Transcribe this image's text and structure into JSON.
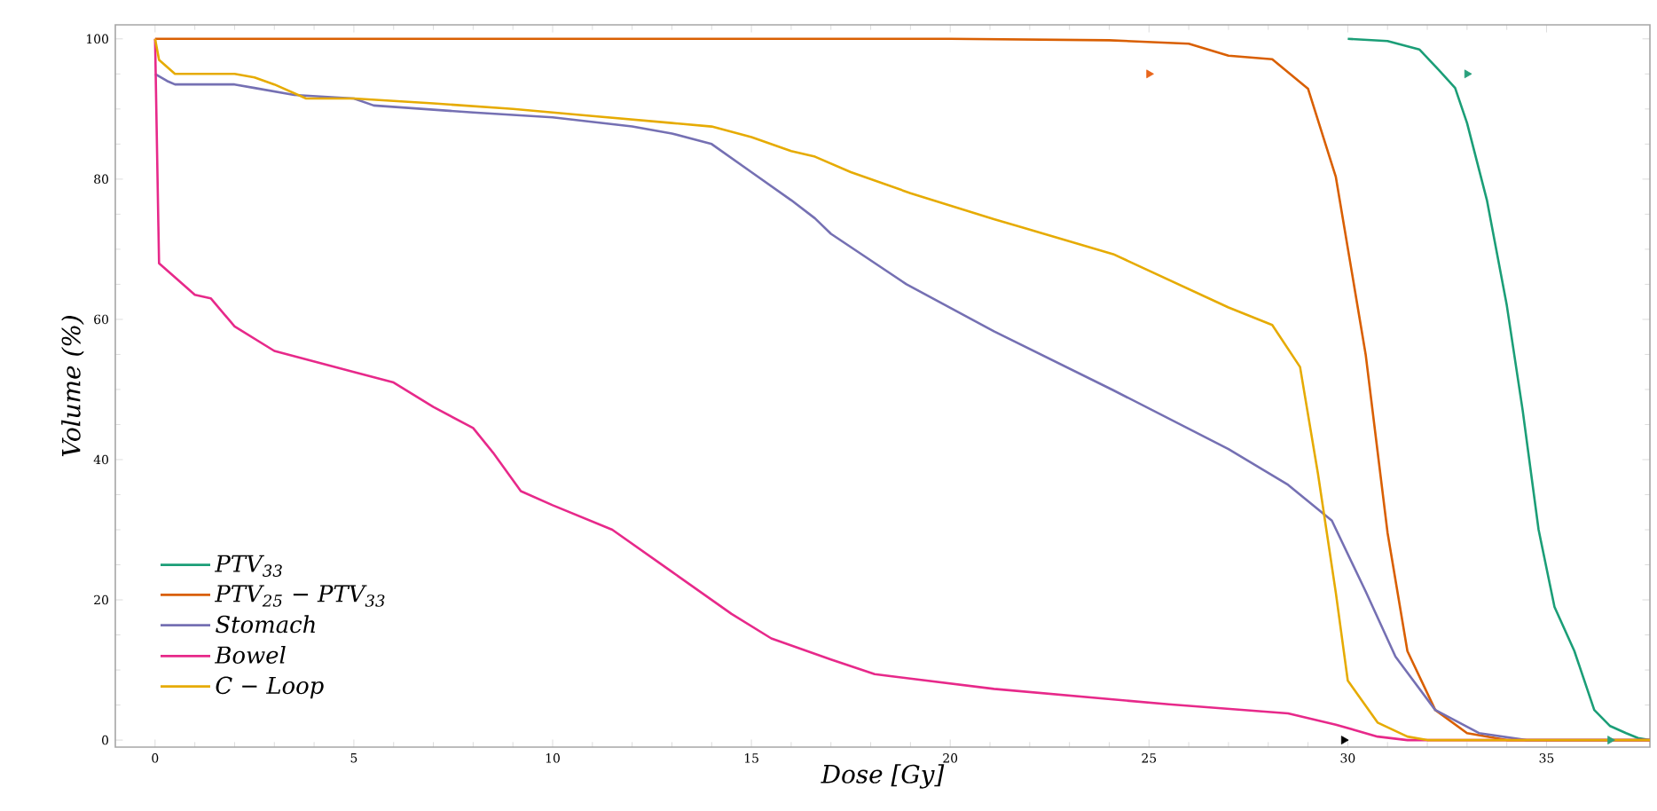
{
  "chart_data": {
    "type": "line",
    "xlabel": "Dose [Gy]",
    "ylabel": "Volume (%)",
    "xlim": [
      -1,
      37.6
    ],
    "ylim": [
      -1,
      102
    ],
    "xticks": [
      0,
      5,
      10,
      15,
      20,
      25,
      30,
      35
    ],
    "yticks": [
      0,
      20,
      40,
      60,
      80,
      100
    ],
    "grid": false,
    "legend": "bottom left",
    "marker": "none",
    "line_style": "solid",
    "series": [
      {
        "name": "PTV$_{33}$",
        "color": "#1b9e77",
        "x": [
          30,
          31,
          31.8,
          32.3,
          32.7,
          33,
          33.5,
          34,
          34.4,
          34.8,
          35.2,
          35.7,
          36.2,
          36.6,
          37,
          37.3,
          37.6
        ],
        "values": [
          100,
          99.7,
          98.5,
          95.5,
          93,
          88,
          77,
          62,
          47,
          30,
          19,
          12.7,
          4.3,
          2,
          1,
          0.3,
          0
        ]
      },
      {
        "name": "PTV$_{25}$ − PTV$_{33}$",
        "color": "#d95f02",
        "x": [
          0,
          10,
          20,
          24,
          26,
          27,
          28.1,
          29,
          29.7,
          30.45,
          31,
          31.5,
          32.2,
          33,
          34,
          37.6
        ],
        "values": [
          100,
          100,
          100,
          99.8,
          99.3,
          97.6,
          97.1,
          92.9,
          80.3,
          55,
          29.6,
          12.7,
          4.3,
          1,
          0,
          0
        ]
      },
      {
        "name": "Stomach",
        "color": "#7570b3",
        "x": [
          0,
          0.3,
          0.5,
          2,
          2.5,
          3.5,
          5,
          5.5,
          8,
          10,
          12,
          13,
          14,
          15,
          16,
          16.6,
          17,
          18.9,
          21.1,
          24.1,
          27,
          28.5,
          29.6,
          30.45,
          31.2,
          32.2,
          33.3,
          34.5,
          37.6
        ],
        "values": [
          95,
          94,
          93.5,
          93.5,
          93,
          92,
          91.5,
          90.5,
          89.5,
          88.8,
          87.5,
          86.5,
          85,
          81,
          77,
          74.4,
          72.2,
          65,
          58.3,
          49.9,
          41.5,
          36.4,
          31.3,
          21.2,
          11.9,
          4.3,
          1,
          0,
          0
        ]
      },
      {
        "name": "Bowel",
        "color": "#e7298a",
        "x": [
          0,
          0.1,
          0.5,
          1,
          1.4,
          2,
          3,
          4,
          5,
          6,
          7,
          8,
          8.5,
          9.2,
          10,
          11.5,
          13,
          14.5,
          15.5,
          17,
          18.1,
          21.1,
          25.5,
          28.5,
          29.7,
          30.75,
          31.5,
          37.6
        ],
        "values": [
          100,
          68,
          66,
          63.5,
          63,
          59,
          55.5,
          54,
          52.5,
          51,
          47.5,
          44.5,
          41,
          35.5,
          33.5,
          30,
          24,
          18,
          14.5,
          11.5,
          9.4,
          7.3,
          5.1,
          3.8,
          2.2,
          0.5,
          0,
          0
        ]
      },
      {
        "name": "C − Loop",
        "color": "#e6ab02",
        "x": [
          0,
          0.1,
          0.5,
          2,
          2.5,
          3,
          3.8,
          5,
          7,
          9,
          11,
          13,
          14,
          15,
          16,
          16.6,
          17.5,
          19,
          21.1,
          24.1,
          27,
          28.1,
          28.8,
          29.25,
          29.7,
          30,
          30.75,
          31.5,
          32,
          37.6
        ],
        "values": [
          100,
          97,
          95,
          95,
          94.5,
          93.5,
          91.5,
          91.5,
          90.8,
          90,
          89,
          88,
          87.5,
          86,
          84,
          83.2,
          81,
          78,
          74.3,
          69.3,
          61.7,
          59.2,
          53.2,
          38,
          21,
          8.5,
          2.5,
          0.5,
          0,
          0
        ]
      },
      {
        "type": "scatter",
        "marker": "triangle",
        "color": "#e8661c",
        "x": [
          25
        ],
        "values": [
          95
        ]
      },
      {
        "type": "scatter",
        "marker": "triangle",
        "color": "#2aa07c",
        "x": [
          33,
          36.6
        ],
        "values": [
          95,
          0
        ]
      },
      {
        "type": "scatter",
        "marker": "triangle",
        "color": "#000000",
        "x": [
          29.9
        ],
        "values": [
          0
        ]
      }
    ]
  }
}
